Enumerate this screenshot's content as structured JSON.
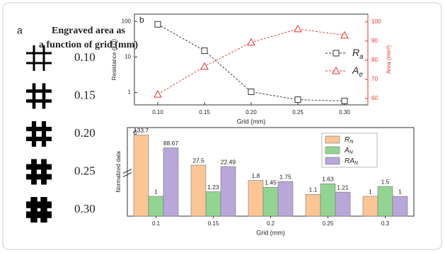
{
  "panel_a": {
    "label": "a",
    "title_lines": [
      "Engraved area as",
      "a function of grid (mm)"
    ],
    "grids": [
      "0.10",
      "0.15",
      "0.20",
      "0.25",
      "0.30"
    ]
  },
  "chart_data": [
    {
      "type": "line",
      "panel_label": "b",
      "xlabel": "Grid (mm)",
      "ylabel": "Resistance (KΩ)",
      "y2label": "Area (mm²)",
      "x": [
        0.1,
        0.15,
        0.2,
        0.25,
        0.3
      ],
      "xlim": [
        0.075,
        0.325
      ],
      "xticks": [
        {
          "value": 0.1,
          "label": "0.10"
        },
        {
          "value": 0.15,
          "label": "0.15"
        },
        {
          "value": 0.2,
          "label": "0.20"
        },
        {
          "value": 0.25,
          "label": "0.25"
        },
        {
          "value": 0.3,
          "label": "0.30"
        }
      ],
      "ylog": true,
      "ylim": [
        0.45,
        160
      ],
      "yticks": [
        1,
        10,
        100
      ],
      "y2lim": [
        56.7,
        104
      ],
      "y2ticks": [
        60,
        70,
        80,
        90,
        100
      ],
      "y2color": "#e8352c",
      "series": [
        {
          "name": "Ra",
          "color": "#333333",
          "marker": "square",
          "values": [
            83,
            15,
            1.05,
            0.63,
            0.58
          ]
        },
        {
          "name": "Ae",
          "color": "#e8352c",
          "marker": "triangle",
          "axis": "y2",
          "values": [
            62.2,
            76.7,
            89.3,
            96.3,
            93
          ]
        }
      ]
    },
    {
      "type": "bar",
      "panel_label": "c",
      "xlabel": "Grid (mm)",
      "ylabel": "Normalized data",
      "categories": [
        "0.1",
        "0.15",
        "0.2",
        "0.25",
        "0.3"
      ],
      "ylim": [
        0,
        140
      ],
      "ybreak": [
        2,
        20
      ],
      "series": [
        {
          "name": "RN",
          "color": "#fbc595",
          "values": [
            133.7,
            27.5,
            1.8,
            1.1,
            1
          ]
        },
        {
          "name": "AN",
          "color": "#93d493",
          "values": [
            1,
            1.23,
            1.45,
            1.63,
            1.5
          ]
        },
        {
          "name": "RAN",
          "color": "#b9a7d9",
          "values": [
            88.67,
            22.49,
            1.75,
            1.21,
            1
          ]
        }
      ]
    }
  ]
}
